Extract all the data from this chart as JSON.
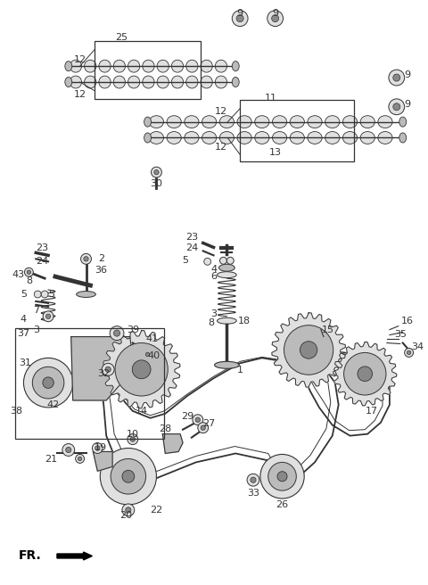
{
  "background_color": "#ffffff",
  "fig_width": 4.8,
  "fig_height": 6.56,
  "dpi": 100,
  "line_color": "#333333",
  "fill_light": "#e0e0e0",
  "fill_mid": "#bbbbbb",
  "fill_dark": "#888888"
}
